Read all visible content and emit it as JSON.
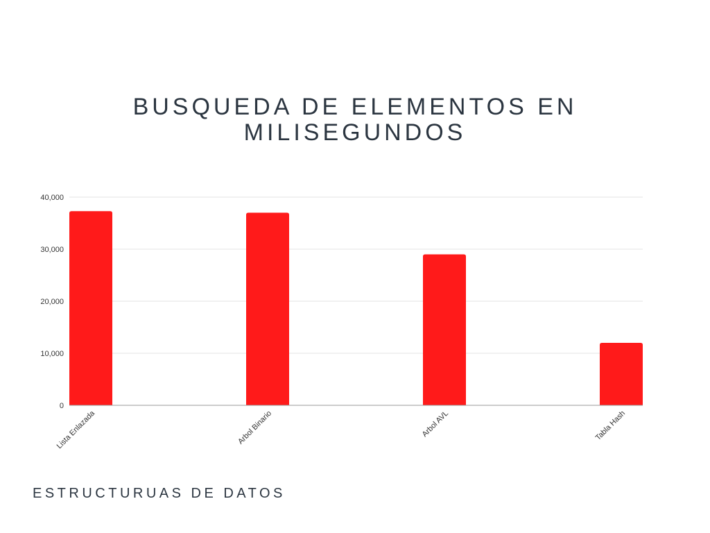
{
  "chart_data": {
    "type": "bar",
    "title_lines": [
      "BUSQUEDA DE ELEMENTOS EN",
      "MILISEGUNDOS"
    ],
    "xlabel": "ESTRUCTURUAS DE DATOS",
    "ylabel": "",
    "categories": [
      "Lista Enlazada",
      "Arbol Binario",
      "Arbol AVL",
      "Tabla Hash"
    ],
    "values": [
      37300,
      37000,
      29000,
      12000
    ],
    "ylim": [
      0,
      40000
    ],
    "yticks": [
      0,
      10000,
      20000,
      30000,
      40000
    ],
    "ytick_labels": [
      "0",
      "10,000",
      "20,000",
      "30,000",
      "40,000"
    ],
    "bar_color": "#ff1a1a",
    "grid": true,
    "legend": "none"
  }
}
